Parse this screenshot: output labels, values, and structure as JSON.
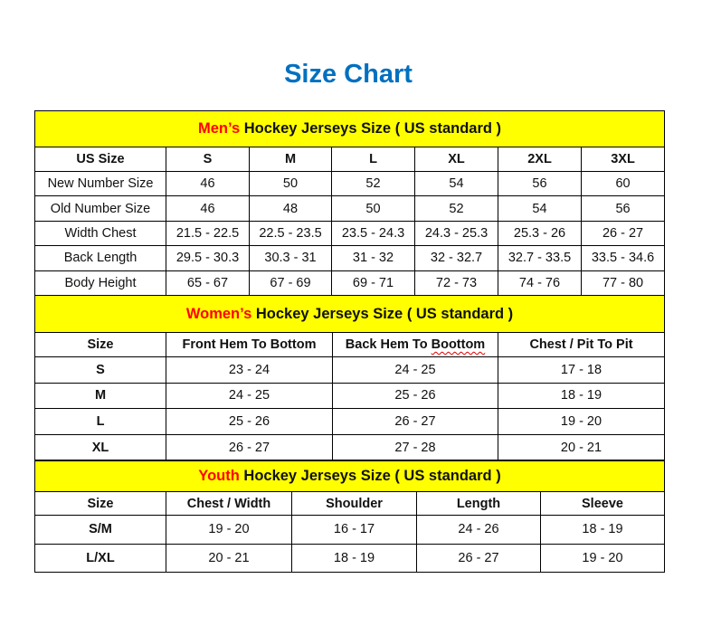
{
  "title": "Size Chart",
  "colors": {
    "title": "#0070C0",
    "header_bg": "#FFFF00",
    "accent": "#FF0000"
  },
  "men": {
    "header_accent": "Men’s",
    "header_rest": " Hockey Jerseys Size ( US standard )",
    "columns": [
      "US Size",
      "S",
      "M",
      "L",
      "XL",
      "2XL",
      "3XL"
    ],
    "rows": [
      [
        "New Number Size",
        "46",
        "50",
        "52",
        "54",
        "56",
        "60"
      ],
      [
        "Old Number Size",
        "46",
        "48",
        "50",
        "52",
        "54",
        "56"
      ],
      [
        "Width Chest",
        "21.5 - 22.5",
        "22.5 - 23.5",
        "23.5 - 24.3",
        "24.3 - 25.3",
        "25.3 - 26",
        "26 - 27"
      ],
      [
        "Back Length",
        "29.5 - 30.3",
        "30.3 - 31",
        "31 - 32",
        "32 - 32.7",
        "32.7 - 33.5",
        "33.5 - 34.6"
      ],
      [
        "Body Height",
        "65 - 67",
        "67 - 69",
        "69 - 71",
        "72 - 73",
        "74 - 76",
        "77 - 80"
      ]
    ]
  },
  "women": {
    "header_accent": "Women’s",
    "header_rest": " Hockey Jerseys Size ( US standard )",
    "columns": [
      "Size",
      "Front Hem To Bottom",
      "Back Hem To Boottom",
      "Chest / Pit To Pit"
    ],
    "rows": [
      [
        "S",
        "23 - 24",
        "24 - 25",
        "17 - 18"
      ],
      [
        "M",
        "24 - 25",
        "25 - 26",
        "18 - 19"
      ],
      [
        "L",
        "25 - 26",
        "26 - 27",
        "19 - 20"
      ],
      [
        "XL",
        "26 - 27",
        "27 - 28",
        "20 - 21"
      ]
    ]
  },
  "youth": {
    "header_accent": "Youth",
    "header_rest": " Hockey Jerseys Size ( US standard )",
    "columns": [
      "Size",
      "Chest / Width",
      "Shoulder",
      "Length",
      "Sleeve"
    ],
    "rows": [
      [
        "S/M",
        "19 - 20",
        "16 - 17",
        "24 - 26",
        "18 - 19"
      ],
      [
        "L/XL",
        "20 - 21",
        "18 - 19",
        "26 - 27",
        "19 - 20"
      ]
    ]
  }
}
